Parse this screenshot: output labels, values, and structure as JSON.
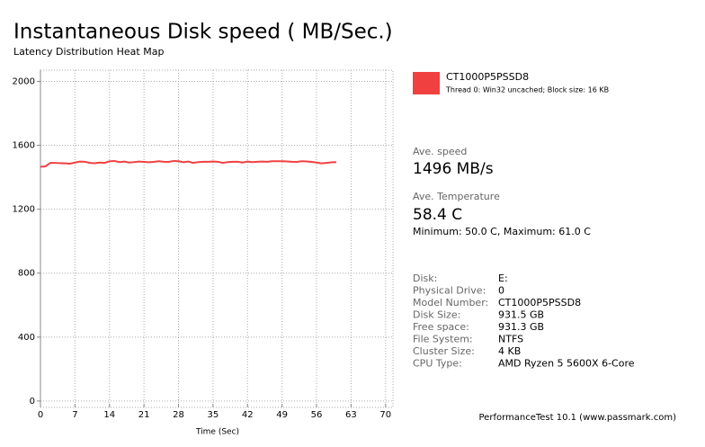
{
  "chart_data": {
    "type": "line",
    "title": "Instantaneous Disk speed ( MB/Sec.)",
    "subtitle": "Latency Distribution Heat Map",
    "x_label": "Time (Sec)",
    "x": [
      0,
      1,
      2,
      3,
      4,
      5,
      6,
      7,
      8,
      9,
      10,
      11,
      12,
      13,
      14,
      15,
      16,
      17,
      18,
      19,
      20,
      21,
      22,
      23,
      24,
      25,
      26,
      27,
      28,
      29,
      30,
      31,
      32,
      33,
      34,
      35,
      36,
      37,
      38,
      39,
      40,
      41,
      42,
      43,
      44,
      45,
      46,
      47,
      48,
      49,
      50,
      51,
      52,
      53,
      54,
      55,
      56,
      57,
      58,
      59,
      60
    ],
    "series": [
      {
        "name": "CT1000P5PSSD8",
        "color": "#f04040",
        "values": [
          1465,
          1468,
          1490,
          1490,
          1488,
          1487,
          1485,
          1492,
          1498,
          1497,
          1490,
          1488,
          1492,
          1490,
          1500,
          1502,
          1495,
          1498,
          1492,
          1495,
          1498,
          1496,
          1494,
          1496,
          1500,
          1497,
          1496,
          1502,
          1500,
          1494,
          1498,
          1490,
          1495,
          1497,
          1497,
          1498,
          1497,
          1490,
          1495,
          1497,
          1497,
          1492,
          1498,
          1495,
          1497,
          1498,
          1497,
          1500,
          1500,
          1500,
          1499,
          1497,
          1496,
          1500,
          1499,
          1496,
          1492,
          1487,
          1490,
          1493,
          1495
        ]
      }
    ],
    "xlim": [
      0,
      71.5
    ],
    "ylim": [
      -40,
      2070
    ],
    "xticks": [
      0,
      7,
      14,
      21,
      28,
      35,
      42,
      49,
      56,
      63,
      70
    ],
    "yticks": [
      0,
      400,
      800,
      1200,
      1600,
      2000
    ],
    "grid": true
  },
  "legend_detail": "Thread 0: Win32 uncached; Block size: 16 KB",
  "stats": [
    {
      "label": "Ave. speed",
      "value": "1496 MB/s"
    },
    {
      "label": "Ave. Temperature",
      "value": "58.4 C",
      "detail": "Minimum: 50.0 C, Maximum: 61.0 C"
    }
  ],
  "disk_info": [
    [
      "Disk:",
      "E:"
    ],
    [
      "Physical Drive:",
      "0"
    ],
    [
      "Model Number:",
      "CT1000P5PSSD8"
    ],
    [
      "Disk Size:",
      "931.5 GB"
    ],
    [
      "Free space:",
      "931.3 GB"
    ],
    [
      "File System:",
      "NTFS"
    ],
    [
      "Cluster Size:",
      "4 KB"
    ],
    [
      "CPU Type:",
      "AMD Ryzen 5 5600X 6-Core"
    ]
  ],
  "footer": "PerformanceTest 10.1 (www.passmark.com)"
}
